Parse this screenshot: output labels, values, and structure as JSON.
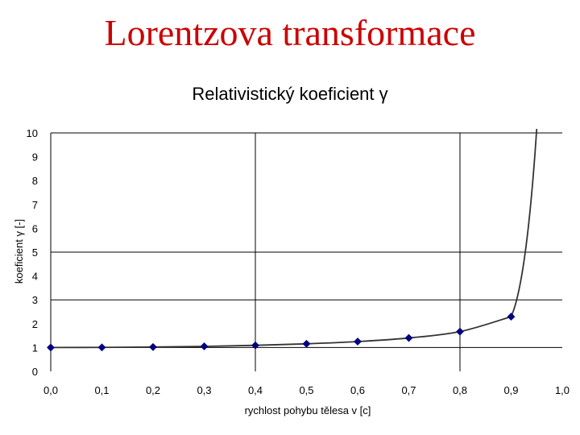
{
  "slide": {
    "title": "Lorentzova transformace"
  },
  "chart_data": {
    "type": "line",
    "title": "Relativistický koeficient γ",
    "xlabel": "rychlost pohybu tělesa v [c]",
    "ylabel": "koeficient γ [-]",
    "x": [
      0.0,
      0.1,
      0.2,
      0.3,
      0.4,
      0.5,
      0.6,
      0.7,
      0.8,
      0.9
    ],
    "x_tick_labels": [
      "0,0",
      "0,1",
      "0,2",
      "0,3",
      "0,4",
      "0,5",
      "0,6",
      "0,7",
      "0,8",
      "0,9",
      "1,0"
    ],
    "y_tick_labels": [
      "0",
      "1",
      "2",
      "3",
      "4",
      "5",
      "6",
      "7",
      "8",
      "9",
      "10"
    ],
    "xlim": [
      0,
      1
    ],
    "ylim": [
      0,
      10
    ],
    "series": [
      {
        "values": [
          1.0,
          1.005,
          1.021,
          1.048,
          1.091,
          1.155,
          1.25,
          1.4,
          1.667,
          2.294
        ],
        "marker": "diamond",
        "marker_color": "#00007f"
      }
    ],
    "curve_color": "#333333",
    "grid": true,
    "gridlines_y": [
      1,
      3,
      5
    ],
    "gridlines_x": [
      0.4,
      0.8
    ],
    "legend": "none"
  }
}
